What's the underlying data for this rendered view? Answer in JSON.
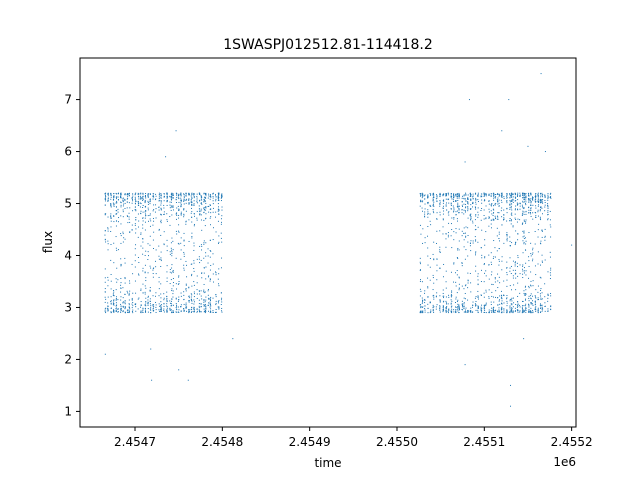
{
  "chart_data": {
    "type": "scatter",
    "title": "1SWASPJ012512.81-114418.2",
    "xlabel": "time",
    "ylabel": "flux",
    "x_offset_label": "1e6",
    "xlim": [
      2454637,
      2455205
    ],
    "ylim": [
      0.7,
      7.8
    ],
    "x_ticks": [
      2454700,
      2454800,
      2454900,
      2455000,
      2455100,
      2455200
    ],
    "x_tick_labels": [
      "2.4547",
      "2.4548",
      "2.4549",
      "2.4550",
      "2.4551",
      "2.4552"
    ],
    "y_ticks": [
      1,
      2,
      3,
      4,
      5,
      6,
      7
    ],
    "y_tick_labels": [
      "1",
      "2",
      "3",
      "4",
      "5",
      "6",
      "7"
    ],
    "grid": false,
    "legend": false,
    "color": "#1f77b4",
    "series": [
      {
        "observing_seasons": [
          {
            "x_range": [
              2454666,
              2454801
            ],
            "flux_range": [
              2.9,
              5.2
            ]
          },
          {
            "x_range": [
              2455027,
              2455176
            ],
            "flux_range": [
              2.9,
              5.2
            ]
          }
        ],
        "sample_points": [
          [
            2454666,
            2.1
          ],
          [
            2454718,
            2.2
          ],
          [
            2454719,
            1.6
          ],
          [
            2454735,
            5.9
          ],
          [
            2454747,
            6.4
          ],
          [
            2454750,
            1.8
          ],
          [
            2454761,
            1.6
          ],
          [
            2454812,
            2.4
          ],
          [
            2455083,
            7.0
          ],
          [
            2455078,
            5.8
          ],
          [
            2455078,
            1.9
          ],
          [
            2455128,
            7.0
          ],
          [
            2455120,
            6.4
          ],
          [
            2455130,
            1.5
          ],
          [
            2455150,
            6.1
          ],
          [
            2455170,
            6.0
          ],
          [
            2455165,
            7.5
          ],
          [
            2455130,
            1.1
          ],
          [
            2455145,
            2.4
          ],
          [
            2455200,
            4.2
          ]
        ]
      }
    ]
  }
}
